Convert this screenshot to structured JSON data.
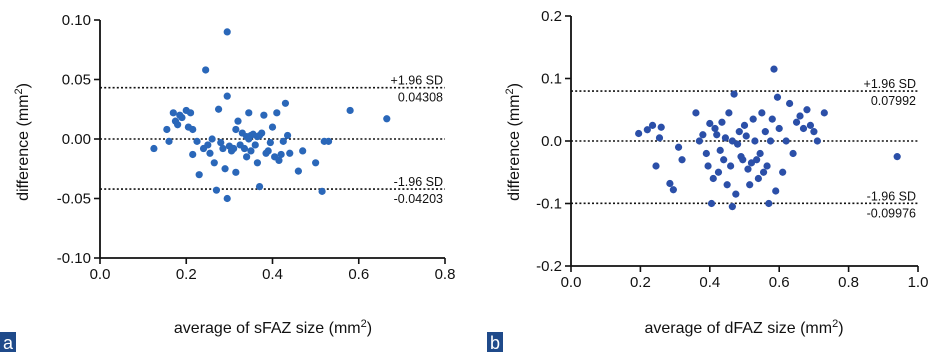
{
  "chart_data": [
    {
      "type": "scatter",
      "panel": "a",
      "xlabel": "average of sFAZ size (mm",
      "xlabel_sup": "2",
      "xlabel_tail": ")",
      "ylabel": "difference (mm",
      "ylabel_sup": "2",
      "ylabel_tail": ")",
      "xlim": [
        0,
        0.8
      ],
      "ylim": [
        -0.1,
        0.1
      ],
      "xticks": [
        0,
        0.2,
        0.4,
        0.6,
        0.8
      ],
      "xtick_labels": [
        "0.0",
        "0.2",
        "0.4",
        "0.6",
        "0.8"
      ],
      "yticks": [
        -0.1,
        -0.05,
        0,
        0.05,
        0.1
      ],
      "ytick_labels": [
        "-0.10",
        "-0.05",
        "0.00",
        "0.05",
        "0.10"
      ],
      "point_color": "#2a67b9",
      "reference_lines": [
        {
          "y": 0.04308,
          "label_top": "+1.96 SD",
          "label_bottom": "0.04308"
        },
        {
          "y": 0.0,
          "label_top": "",
          "label_bottom": ""
        },
        {
          "y": -0.04203,
          "label_top": "-1.96 SD",
          "label_bottom": "-0.04203"
        }
      ],
      "points": [
        [
          0.125,
          -0.008
        ],
        [
          0.155,
          0.008
        ],
        [
          0.16,
          -0.002
        ],
        [
          0.17,
          0.022
        ],
        [
          0.175,
          0.015
        ],
        [
          0.18,
          0.012
        ],
        [
          0.185,
          0.02
        ],
        [
          0.19,
          0.018
        ],
        [
          0.2,
          0.024
        ],
        [
          0.205,
          0.01
        ],
        [
          0.21,
          0.022
        ],
        [
          0.215,
          0.008
        ],
        [
          0.215,
          -0.013
        ],
        [
          0.225,
          -0.002
        ],
        [
          0.23,
          -0.03
        ],
        [
          0.24,
          -0.008
        ],
        [
          0.245,
          0.058
        ],
        [
          0.25,
          -0.005
        ],
        [
          0.255,
          -0.012
        ],
        [
          0.26,
          0.0
        ],
        [
          0.265,
          -0.02
        ],
        [
          0.27,
          -0.043
        ],
        [
          0.275,
          0.025
        ],
        [
          0.28,
          -0.003
        ],
        [
          0.285,
          -0.008
        ],
        [
          0.29,
          -0.025
        ],
        [
          0.295,
          0.09
        ],
        [
          0.295,
          0.036
        ],
        [
          0.295,
          -0.05
        ],
        [
          0.3,
          -0.006
        ],
        [
          0.305,
          -0.01
        ],
        [
          0.31,
          -0.008
        ],
        [
          0.315,
          0.008
        ],
        [
          0.315,
          -0.028
        ],
        [
          0.32,
          0.015
        ],
        [
          0.325,
          -0.005
        ],
        [
          0.33,
          0.005
        ],
        [
          0.335,
          -0.008
        ],
        [
          0.34,
          0.002
        ],
        [
          0.34,
          -0.015
        ],
        [
          0.345,
          0.0
        ],
        [
          0.345,
          0.022
        ],
        [
          0.35,
          0.003
        ],
        [
          0.35,
          -0.01
        ],
        [
          0.355,
          0.004
        ],
        [
          0.36,
          -0.005
        ],
        [
          0.365,
          0.002
        ],
        [
          0.365,
          -0.02
        ],
        [
          0.37,
          0.003
        ],
        [
          0.37,
          -0.04
        ],
        [
          0.375,
          0.005
        ],
        [
          0.38,
          0.02
        ],
        [
          0.385,
          -0.012
        ],
        [
          0.39,
          -0.01
        ],
        [
          0.395,
          -0.003
        ],
        [
          0.4,
          0.01
        ],
        [
          0.405,
          -0.015
        ],
        [
          0.41,
          0.022
        ],
        [
          0.415,
          -0.018
        ],
        [
          0.42,
          -0.013
        ],
        [
          0.425,
          -0.002
        ],
        [
          0.43,
          0.03
        ],
        [
          0.435,
          0.003
        ],
        [
          0.44,
          -0.012
        ],
        [
          0.46,
          -0.027
        ],
        [
          0.47,
          -0.01
        ],
        [
          0.5,
          -0.02
        ],
        [
          0.515,
          -0.044
        ],
        [
          0.52,
          -0.002
        ],
        [
          0.53,
          -0.002
        ],
        [
          0.58,
          0.024
        ],
        [
          0.665,
          0.017
        ]
      ]
    },
    {
      "type": "scatter",
      "panel": "b",
      "xlabel": "average of dFAZ size (mm",
      "xlabel_sup": "2",
      "xlabel_tail": ")",
      "ylabel": "difference (mm",
      "ylabel_sup": "2",
      "ylabel_tail": ")",
      "xlim": [
        0,
        1.0
      ],
      "ylim": [
        -0.2,
        0.2
      ],
      "xticks": [
        0,
        0.2,
        0.4,
        0.6,
        0.8,
        1.0
      ],
      "xtick_labels": [
        "0.0",
        "0.2",
        "0.4",
        "0.6",
        "0.8",
        "1.0"
      ],
      "yticks": [
        -0.2,
        -0.1,
        0,
        0.1,
        0.2
      ],
      "ytick_labels": [
        "-0.2",
        "-0.1",
        "0.0",
        "0.1",
        "0.2"
      ],
      "point_color": "#2b4fa8",
      "reference_lines": [
        {
          "y": 0.07992,
          "label_top": "+1.96 SD",
          "label_bottom": "0.07992"
        },
        {
          "y": 0.0,
          "label_top": "",
          "label_bottom": ""
        },
        {
          "y": -0.09976,
          "label_top": "-1.96 SD",
          "label_bottom": "-0.09976"
        }
      ],
      "points": [
        [
          0.195,
          0.012
        ],
        [
          0.22,
          0.018
        ],
        [
          0.235,
          0.025
        ],
        [
          0.245,
          -0.04
        ],
        [
          0.255,
          0.005
        ],
        [
          0.26,
          0.022
        ],
        [
          0.285,
          -0.068
        ],
        [
          0.295,
          -0.078
        ],
        [
          0.31,
          -0.01
        ],
        [
          0.32,
          -0.03
        ],
        [
          0.36,
          0.045
        ],
        [
          0.37,
          0.0
        ],
        [
          0.38,
          0.01
        ],
        [
          0.39,
          -0.02
        ],
        [
          0.395,
          -0.04
        ],
        [
          0.4,
          0.028
        ],
        [
          0.405,
          -0.1
        ],
        [
          0.41,
          -0.06
        ],
        [
          0.415,
          0.02
        ],
        [
          0.42,
          0.01
        ],
        [
          0.425,
          -0.05
        ],
        [
          0.43,
          -0.015
        ],
        [
          0.435,
          0.03
        ],
        [
          0.44,
          -0.03
        ],
        [
          0.445,
          0.005
        ],
        [
          0.45,
          -0.07
        ],
        [
          0.455,
          0.045
        ],
        [
          0.46,
          -0.04
        ],
        [
          0.465,
          0.0
        ],
        [
          0.465,
          -0.105
        ],
        [
          0.47,
          0.075
        ],
        [
          0.475,
          -0.085
        ],
        [
          0.48,
          -0.005
        ],
        [
          0.485,
          0.015
        ],
        [
          0.49,
          -0.025
        ],
        [
          0.495,
          -0.03
        ],
        [
          0.5,
          0.025
        ],
        [
          0.505,
          0.008
        ],
        [
          0.51,
          -0.045
        ],
        [
          0.515,
          -0.07
        ],
        [
          0.52,
          -0.035
        ],
        [
          0.525,
          0.035
        ],
        [
          0.53,
          0.0
        ],
        [
          0.535,
          -0.03
        ],
        [
          0.54,
          -0.06
        ],
        [
          0.545,
          -0.02
        ],
        [
          0.55,
          0.045
        ],
        [
          0.555,
          -0.05
        ],
        [
          0.56,
          0.015
        ],
        [
          0.565,
          -0.04
        ],
        [
          0.57,
          -0.1
        ],
        [
          0.575,
          0.0
        ],
        [
          0.58,
          0.035
        ],
        [
          0.585,
          0.115
        ],
        [
          0.59,
          -0.08
        ],
        [
          0.595,
          0.07
        ],
        [
          0.6,
          0.02
        ],
        [
          0.61,
          -0.05
        ],
        [
          0.62,
          0.0
        ],
        [
          0.63,
          0.06
        ],
        [
          0.64,
          -0.02
        ],
        [
          0.65,
          0.03
        ],
        [
          0.66,
          0.04
        ],
        [
          0.67,
          0.02
        ],
        [
          0.68,
          0.05
        ],
        [
          0.69,
          0.025
        ],
        [
          0.7,
          0.015
        ],
        [
          0.71,
          0.0
        ],
        [
          0.73,
          0.045
        ],
        [
          0.94,
          -0.025
        ]
      ]
    }
  ],
  "panels": [
    {
      "tag": "a",
      "tag_color": "#1f4a8a"
    },
    {
      "tag": "b",
      "tag_color": "#1f4a8a"
    }
  ]
}
